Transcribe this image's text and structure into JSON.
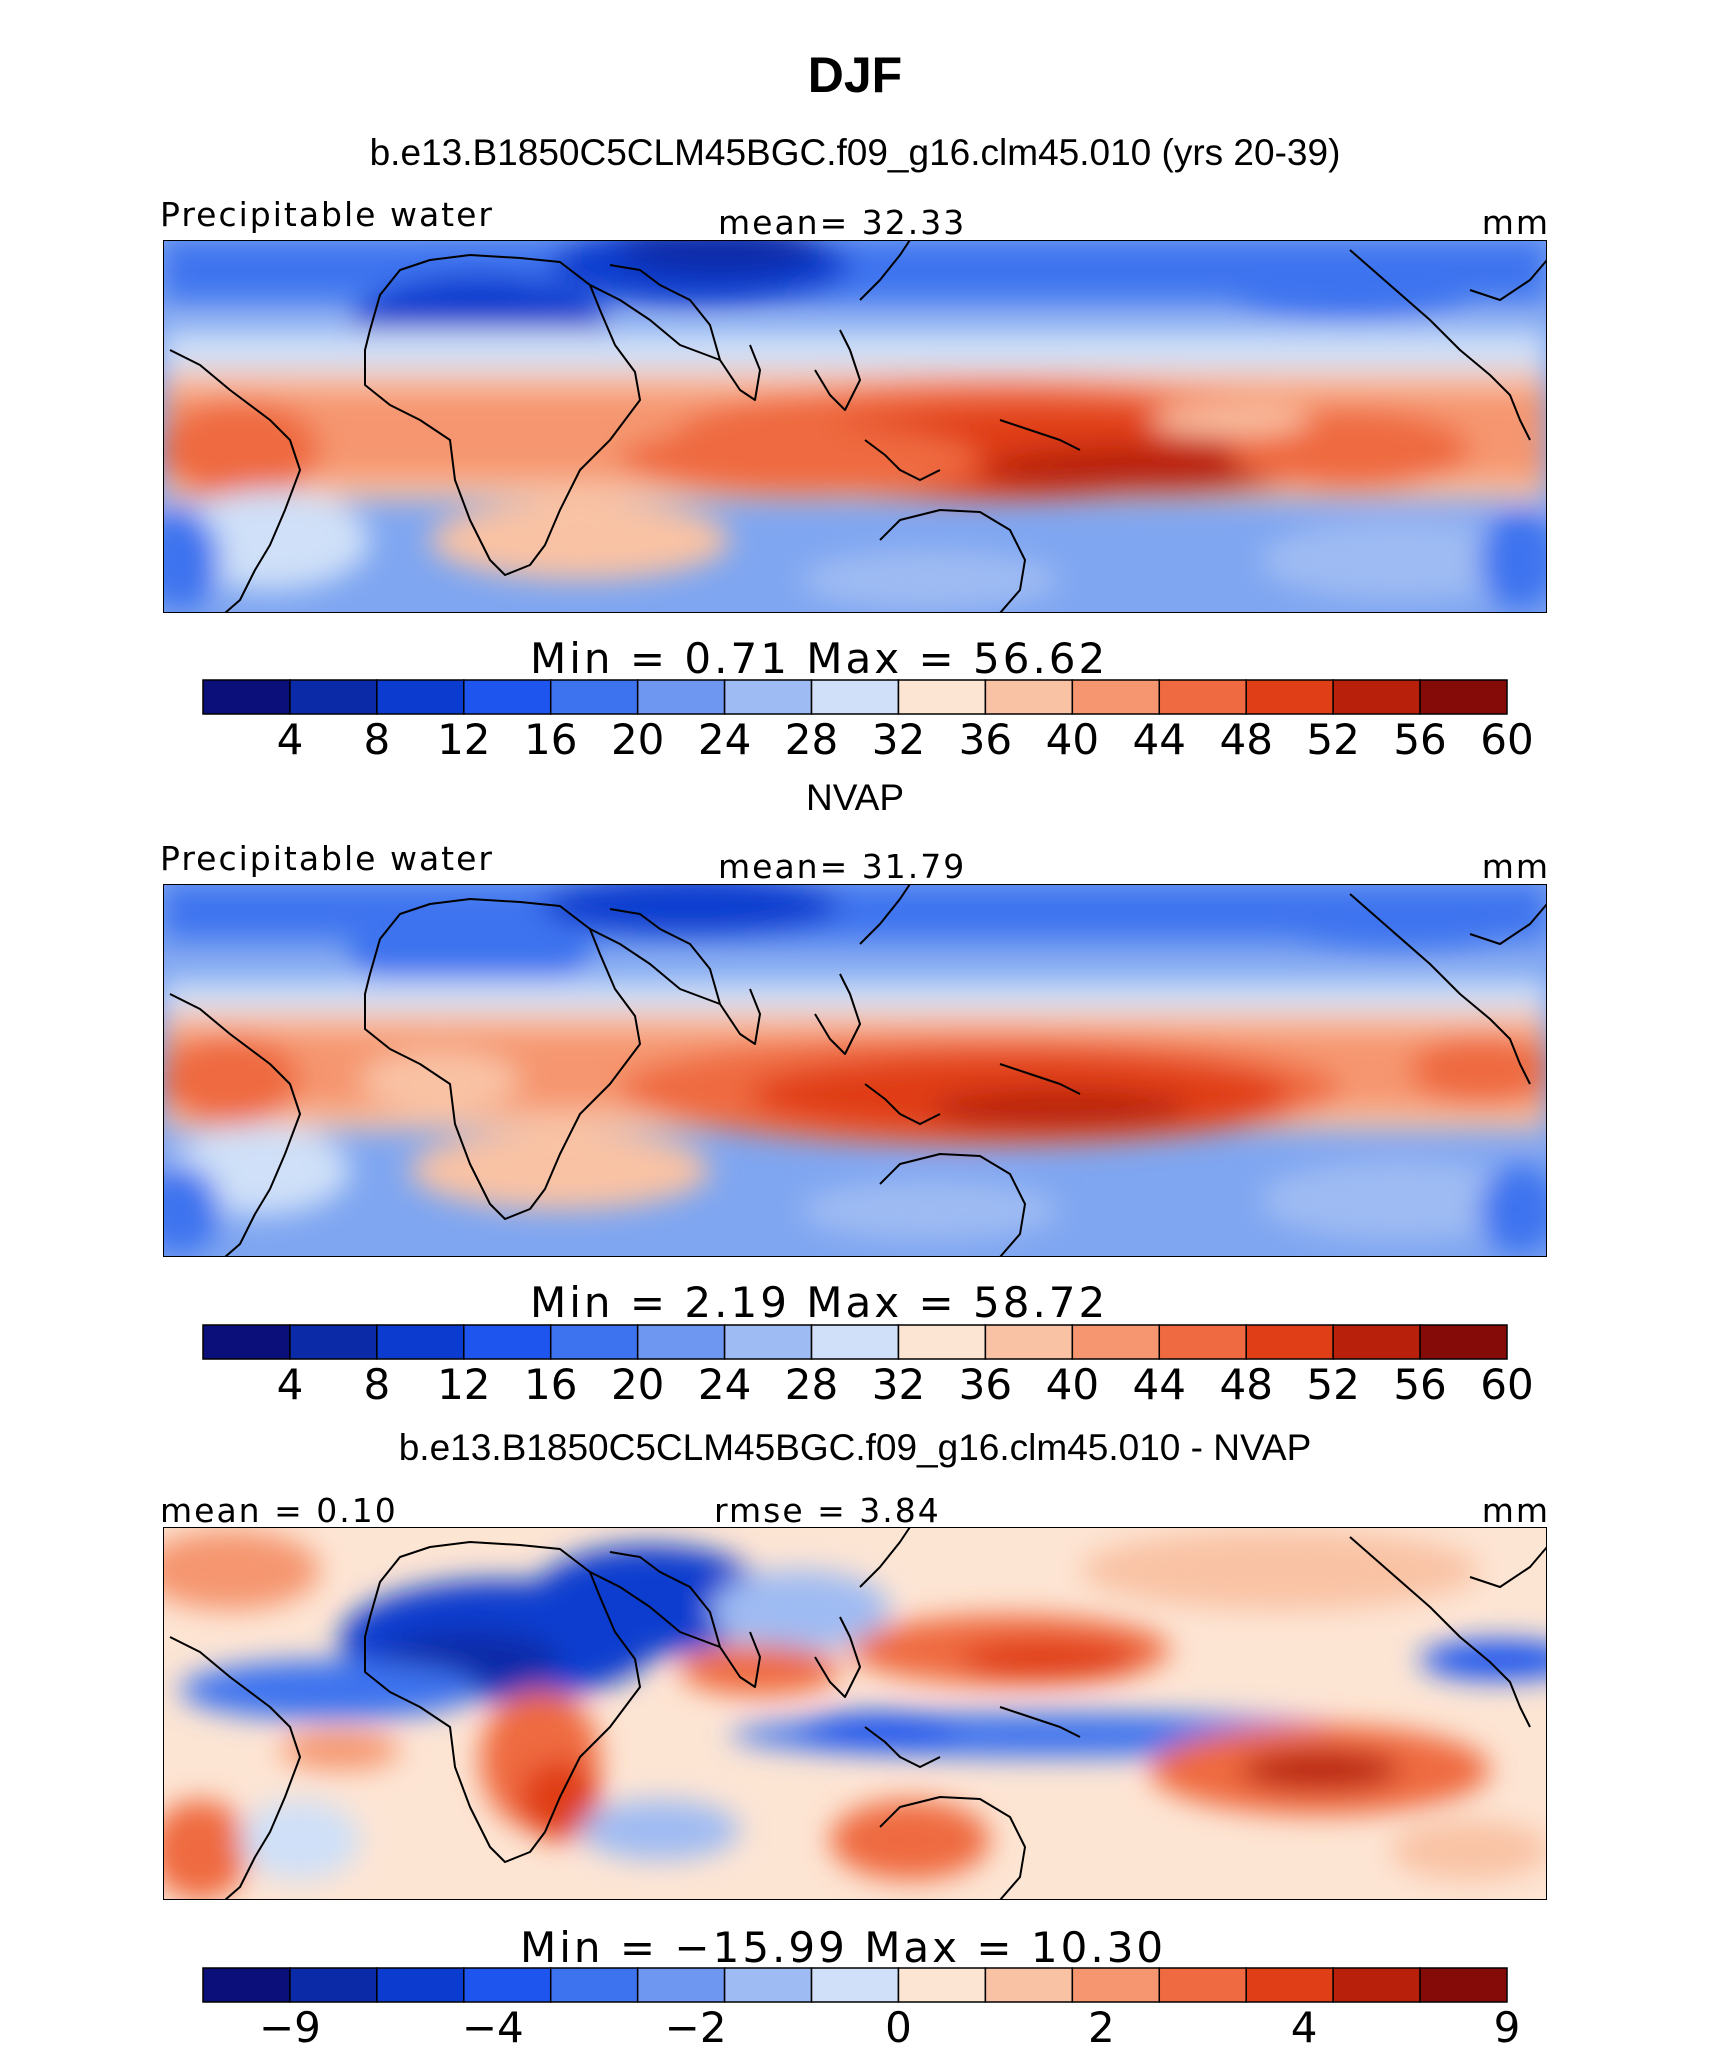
{
  "title": "DJF",
  "colors": {
    "palette": [
      "#0a0f7a",
      "#0a2aa8",
      "#0c3ccf",
      "#1e55ee",
      "#3e73ef",
      "#6d97f0",
      "#9fbbf3",
      "#cfe0f8",
      "#fde5d4",
      "#f9c2a4",
      "#f59670",
      "#ef6a40",
      "#e03e16",
      "#b8200c",
      "#850b08"
    ]
  },
  "panels": [
    {
      "title": "b.e13.B1850C5CLM45BGC.f09_g16.clm45.010 (yrs 20-39)",
      "left_label": "Precipitable water",
      "center_label": "mean=   32.33",
      "right_label": "mm",
      "minmax": "Min  =     0.71  Max  =    56.62",
      "colorbar_ticks": [
        "4",
        "8",
        "12",
        "16",
        "20",
        "24",
        "28",
        "32",
        "36",
        "40",
        "44",
        "48",
        "52",
        "56",
        "60"
      ]
    },
    {
      "title": "NVAP",
      "left_label": "Precipitable water",
      "center_label": "mean=   31.79",
      "right_label": "mm",
      "minmax": "Min  =     2.19  Max  =    58.72",
      "colorbar_ticks": [
        "4",
        "8",
        "12",
        "16",
        "20",
        "24",
        "28",
        "32",
        "36",
        "40",
        "44",
        "48",
        "52",
        "56",
        "60"
      ]
    },
    {
      "title": "b.e13.B1850C5CLM45BGC.f09_g16.clm45.010 - NVAP",
      "left_label": "mean =    0.10",
      "center_label": "rmse =    3.84",
      "right_label": "mm",
      "minmax": "Min  = −15.99  Max  =   10.30",
      "colorbar_ticks": [
        "−9",
        "",
        "−4",
        "",
        "−2",
        "",
        "0",
        "",
        "2",
        "",
        "4",
        "",
        "9"
      ]
    }
  ]
}
